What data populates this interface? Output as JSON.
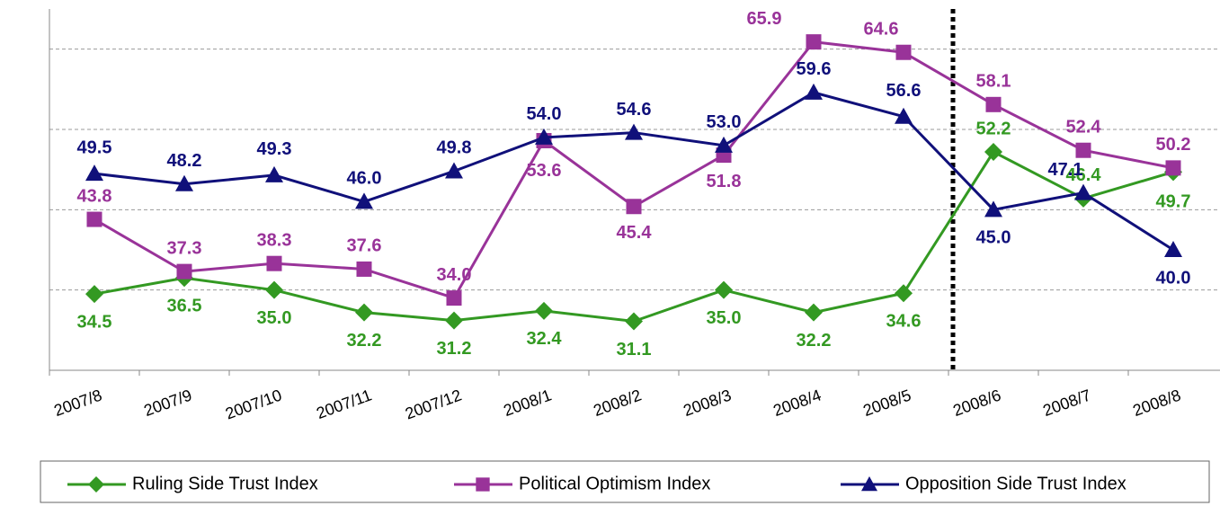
{
  "chart_data": {
    "type": "line",
    "categories": [
      "2007/8",
      "2007/9",
      "2007/10",
      "2007/11",
      "2007/12",
      "2008/1",
      "2008/2",
      "2008/3",
      "2008/4",
      "2008/5",
      "2008/6",
      "2008/7",
      "2008/8"
    ],
    "series": [
      {
        "name": "Ruling Side Trust Index",
        "color": "#339922",
        "marker": "diamond",
        "values": [
          34.5,
          36.5,
          35.0,
          32.2,
          31.2,
          32.4,
          31.1,
          35.0,
          32.2,
          34.6,
          52.2,
          46.4,
          49.7
        ],
        "value_labels": [
          "34.5",
          "36.5",
          "35.0",
          "32.2",
          "31.2",
          "32.4",
          "31.1",
          "35.0",
          "32.2",
          "34.6",
          "52.2",
          "46.4",
          "49.7"
        ]
      },
      {
        "name": "Political Optimism Index",
        "color": "#993399",
        "marker": "square",
        "values": [
          43.8,
          37.3,
          38.3,
          37.6,
          34.0,
          53.6,
          45.4,
          51.8,
          65.9,
          64.6,
          58.1,
          52.4,
          50.2
        ],
        "value_labels": [
          "43.8",
          "37.3",
          "38.3",
          "37.6",
          "34.0",
          "53.6",
          "45.4",
          "51.8",
          "65.9",
          "64.6",
          "58.1",
          "52.4",
          "50.2"
        ]
      },
      {
        "name": "Opposition Side Trust Index",
        "color": "#10107a",
        "marker": "triangle",
        "values": [
          49.5,
          48.2,
          49.3,
          46.0,
          49.8,
          54.0,
          54.6,
          53.0,
          59.6,
          56.6,
          45.0,
          47.1,
          40.0
        ],
        "value_labels": [
          "49.5",
          "48.2",
          "49.3",
          "46.0",
          "49.8",
          "54.0",
          "54.6",
          "53.0",
          "59.6",
          "56.6",
          "45.0",
          "47.1",
          "40.0"
        ]
      }
    ],
    "ylim": [
      25,
      70
    ],
    "yticks": [
      25,
      35,
      45,
      55,
      65
    ],
    "grid": true,
    "legend": "bottom"
  }
}
